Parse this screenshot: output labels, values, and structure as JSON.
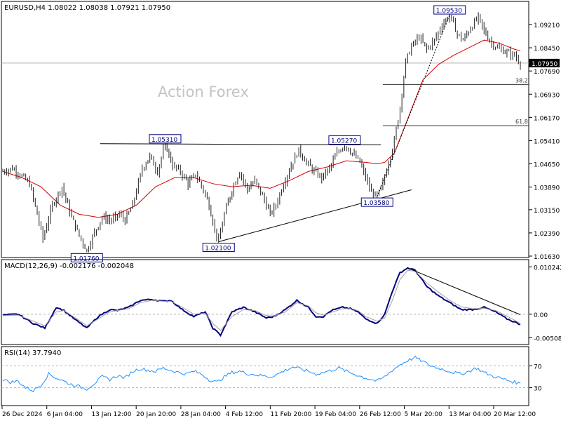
{
  "watermark": "Action Forex",
  "colors": {
    "background": "#ffffff",
    "frame": "#000000",
    "candles": "#1f1f1f",
    "ma": "#d40000",
    "macd_line": "#000080",
    "macd_signal": "#a0a0a0",
    "rsi": "#1e90ff",
    "dotted": "#9a9a9a",
    "trend": "#000000",
    "price_tag_bg": "#000000",
    "price_tag_text": "#ffffff"
  },
  "chart_data": [
    {
      "panel": "price",
      "type": "candlestick",
      "title": "EURUSD,H4  1.08022 1.08038 1.07921 1.07950",
      "ylim": [
        1.0163,
        1.0975
      ],
      "y_ticks": [
        "1.09210",
        "1.08450",
        "1.07690",
        "1.06930",
        "1.06170",
        "1.05410",
        "1.04650",
        "1.03890",
        "1.03150",
        "1.02390",
        "1.01630"
      ],
      "current_price": "1.07950",
      "x_ticks": [
        "26 Dec 2024",
        "6 Jan 04:00",
        "13 Jan 12:00",
        "20 Jan 20:00",
        "28 Jan 04:00",
        "4 Feb 12:00",
        "11 Feb 20:00",
        "19 Feb 04:00",
        "26 Feb 12:00",
        "5 Mar 20:00",
        "13 Mar 04:00",
        "20 Mar 12:00"
      ],
      "close_path": [
        [
          0,
          1.044
        ],
        [
          5,
          1.045
        ],
        [
          10,
          1.0425
        ],
        [
          14,
          1.04
        ],
        [
          18,
          1.03
        ],
        [
          21,
          1.022
        ],
        [
          26,
          1.033
        ],
        [
          31,
          1.039
        ],
        [
          36,
          1.029
        ],
        [
          40,
          1.023
        ],
        [
          44,
          1.018
        ],
        [
          48,
          1.024
        ],
        [
          52,
          1.029
        ],
        [
          57,
          1.028
        ],
        [
          61,
          1.03
        ],
        [
          64,
          1.028
        ],
        [
          68,
          1.033
        ],
        [
          73,
          1.045
        ],
        [
          77,
          1.049
        ],
        [
          81,
          1.044
        ],
        [
          85,
          1.0531
        ],
        [
          89,
          1.046
        ],
        [
          93,
          1.044
        ],
        [
          97,
          1.04
        ],
        [
          101,
          1.043
        ],
        [
          105,
          1.038
        ],
        [
          108,
          1.033
        ],
        [
          111,
          1.025
        ],
        [
          113,
          1.021
        ],
        [
          116,
          1.03
        ],
        [
          120,
          1.038
        ],
        [
          124,
          1.044
        ],
        [
          128,
          1.038
        ],
        [
          132,
          1.041
        ],
        [
          136,
          1.036
        ],
        [
          140,
          1.03
        ],
        [
          143,
          1.033
        ],
        [
          147,
          1.04
        ],
        [
          151,
          1.046
        ],
        [
          155,
          1.051
        ],
        [
          159,
          1.047
        ],
        [
          163,
          1.044
        ],
        [
          167,
          1.042
        ],
        [
          171,
          1.045
        ],
        [
          175,
          1.05
        ],
        [
          179,
          1.0527
        ],
        [
          183,
          1.05
        ],
        [
          187,
          1.047
        ],
        [
          190,
          1.042
        ],
        [
          193,
          1.037
        ],
        [
          196,
          1.0358
        ],
        [
          199,
          1.04
        ],
        [
          202,
          1.047
        ],
        [
          205,
          1.054
        ],
        [
          208,
          1.065
        ],
        [
          211,
          1.08
        ],
        [
          214,
          1.085
        ],
        [
          218,
          1.088
        ],
        [
          222,
          1.084
        ],
        [
          226,
          1.087
        ],
        [
          230,
          1.092
        ],
        [
          234,
          1.0953
        ],
        [
          238,
          1.089
        ],
        [
          241,
          1.087
        ],
        [
          245,
          1.091
        ],
        [
          249,
          1.0945
        ],
        [
          252,
          1.09
        ],
        [
          256,
          1.086
        ],
        [
          260,
          1.084
        ],
        [
          264,
          1.083
        ],
        [
          268,
          1.082
        ],
        [
          271,
          1.0795
        ]
      ],
      "moving_average": [
        [
          0,
          1.044
        ],
        [
          10,
          1.042
        ],
        [
          20,
          1.039
        ],
        [
          30,
          1.033
        ],
        [
          40,
          1.03
        ],
        [
          50,
          1.029
        ],
        [
          60,
          1.03
        ],
        [
          70,
          1.033
        ],
        [
          80,
          1.039
        ],
        [
          90,
          1.042
        ],
        [
          100,
          1.042
        ],
        [
          110,
          1.04
        ],
        [
          120,
          1.039
        ],
        [
          130,
          1.0395
        ],
        [
          140,
          1.0385
        ],
        [
          150,
          1.041
        ],
        [
          160,
          1.044
        ],
        [
          170,
          1.0455
        ],
        [
          180,
          1.0475
        ],
        [
          190,
          1.047
        ],
        [
          196,
          1.0465
        ],
        [
          200,
          1.047
        ],
        [
          205,
          1.05
        ],
        [
          210,
          1.058
        ],
        [
          215,
          1.066
        ],
        [
          220,
          1.074
        ],
        [
          228,
          1.079
        ],
        [
          236,
          1.082
        ],
        [
          244,
          1.0845
        ],
        [
          252,
          1.087
        ],
        [
          260,
          1.086
        ],
        [
          268,
          1.084
        ],
        [
          271,
          1.0835
        ]
      ],
      "annotations": [
        {
          "label": "1.01760",
          "x": 44,
          "y": 1.0176
        },
        {
          "label": "1.05310",
          "x": 85,
          "y": 1.0531
        },
        {
          "label": "1.02100",
          "x": 113,
          "y": 1.021
        },
        {
          "label": "1.05270",
          "x": 179,
          "y": 1.0527
        },
        {
          "label": "1.03580",
          "x": 196,
          "y": 1.0358
        },
        {
          "label": "1.09530",
          "x": 234,
          "y": 1.0953
        }
      ],
      "horizontal_levels": [
        {
          "label": "",
          "y": 1.0795,
          "style": "solid-gray"
        },
        {
          "label": "38.2",
          "y": 1.0725,
          "x_from": 199
        },
        {
          "label": "61.8",
          "y": 1.059,
          "x_from": 199
        }
      ],
      "trend_lines": [
        {
          "from": [
            51,
            1.0531
          ],
          "to": [
            198,
            1.0527
          ],
          "style": "solid"
        },
        {
          "from": [
            113,
            1.021
          ],
          "to": [
            214,
            1.038
          ],
          "style": "solid"
        },
        {
          "from": [
            196,
            1.0358
          ],
          "to": [
            234,
            1.0953
          ],
          "style": "dashed"
        }
      ]
    },
    {
      "panel": "macd",
      "type": "line",
      "title": "MACD(12,26,9) -0.002176 -0.002048",
      "ylim": [
        -0.0061,
        0.0106
      ],
      "y_ticks": [
        "0.010242",
        "0.00",
        "-0.005081"
      ],
      "series": [
        {
          "role": "macd",
          "values": [
            [
              0,
              -0.0002
            ],
            [
              8,
              0.0
            ],
            [
              16,
              -0.002
            ],
            [
              22,
              -0.003
            ],
            [
              28,
              0.0015
            ],
            [
              32,
              0.0008
            ],
            [
              38,
              -0.0012
            ],
            [
              44,
              -0.003
            ],
            [
              50,
              -0.0005
            ],
            [
              56,
              0.001
            ],
            [
              60,
              0.0008
            ],
            [
              66,
              0.0015
            ],
            [
              72,
              0.003
            ],
            [
              78,
              0.0032
            ],
            [
              84,
              0.0028
            ],
            [
              88,
              0.003
            ],
            [
              94,
              0.001
            ],
            [
              100,
              -0.0005
            ],
            [
              106,
              0.0005
            ],
            [
              110,
              -0.003
            ],
            [
              114,
              -0.0045
            ],
            [
              120,
              0.0005
            ],
            [
              126,
              0.0015
            ],
            [
              132,
              0.0005
            ],
            [
              138,
              -0.0008
            ],
            [
              142,
              -0.0005
            ],
            [
              148,
              0.001
            ],
            [
              154,
              0.003
            ],
            [
              160,
              0.0015
            ],
            [
              164,
              -0.0005
            ],
            [
              168,
              -0.0005
            ],
            [
              172,
              0.0008
            ],
            [
              178,
              0.0015
            ],
            [
              182,
              0.0012
            ],
            [
              186,
              0.0005
            ],
            [
              190,
              -0.001
            ],
            [
              196,
              -0.002
            ],
            [
              200,
              0.0
            ],
            [
              204,
              0.005
            ],
            [
              208,
              0.009
            ],
            [
              212,
              0.01
            ],
            [
              216,
              0.0095
            ],
            [
              222,
              0.006
            ],
            [
              228,
              0.004
            ],
            [
              234,
              0.0025
            ],
            [
              240,
              0.001
            ],
            [
              246,
              0.001
            ],
            [
              252,
              0.0015
            ],
            [
              258,
              0.0005
            ],
            [
              264,
              -0.001
            ],
            [
              271,
              -0.0022
            ]
          ]
        },
        {
          "role": "signal",
          "values": [
            [
              0,
              -0.0003
            ],
            [
              8,
              -0.0002
            ],
            [
              16,
              -0.0015
            ],
            [
              22,
              -0.0025
            ],
            [
              28,
              0.0005
            ],
            [
              32,
              0.0008
            ],
            [
              38,
              -0.0008
            ],
            [
              44,
              -0.0025
            ],
            [
              50,
              -0.001
            ],
            [
              56,
              0.0005
            ],
            [
              60,
              0.0008
            ],
            [
              66,
              0.0012
            ],
            [
              72,
              0.0025
            ],
            [
              78,
              0.003
            ],
            [
              84,
              0.0028
            ],
            [
              88,
              0.0028
            ],
            [
              94,
              0.0015
            ],
            [
              100,
              0.0
            ],
            [
              106,
              0.0002
            ],
            [
              110,
              -0.002
            ],
            [
              114,
              -0.0035
            ],
            [
              120,
              -0.0005
            ],
            [
              126,
              0.001
            ],
            [
              132,
              0.0008
            ],
            [
              138,
              -0.0003
            ],
            [
              142,
              -0.0004
            ],
            [
              148,
              0.0005
            ],
            [
              154,
              0.0025
            ],
            [
              160,
              0.0018
            ],
            [
              164,
              0.0003
            ],
            [
              168,
              -0.0002
            ],
            [
              172,
              0.0004
            ],
            [
              178,
              0.0012
            ],
            [
              182,
              0.0012
            ],
            [
              186,
              0.0008
            ],
            [
              190,
              -0.0005
            ],
            [
              196,
              -0.0015
            ],
            [
              200,
              -0.0008
            ],
            [
              204,
              0.003
            ],
            [
              208,
              0.0075
            ],
            [
              212,
              0.0095
            ],
            [
              216,
              0.0093
            ],
            [
              222,
              0.0068
            ],
            [
              228,
              0.0048
            ],
            [
              234,
              0.003
            ],
            [
              240,
              0.0016
            ],
            [
              246,
              0.0012
            ],
            [
              252,
              0.0013
            ],
            [
              258,
              0.0008
            ],
            [
              264,
              -0.0004
            ],
            [
              271,
              -0.002
            ]
          ]
        }
      ],
      "trend_line": {
        "from": [
          212,
          0.01
        ],
        "to": [
          271,
          -0.0001
        ]
      }
    },
    {
      "panel": "rsi",
      "type": "line",
      "title": "RSI(14) 37.7940",
      "ylim": [
        0,
        100
      ],
      "y_ticks": [
        "70",
        "30"
      ],
      "levels": [
        70,
        30
      ],
      "values": [
        [
          0,
          45
        ],
        [
          4,
          40
        ],
        [
          8,
          42
        ],
        [
          12,
          30
        ],
        [
          16,
          25
        ],
        [
          20,
          35
        ],
        [
          24,
          55
        ],
        [
          28,
          48
        ],
        [
          32,
          42
        ],
        [
          36,
          36
        ],
        [
          40,
          32
        ],
        [
          44,
          28
        ],
        [
          48,
          38
        ],
        [
          52,
          50
        ],
        [
          56,
          45
        ],
        [
          60,
          52
        ],
        [
          64,
          48
        ],
        [
          68,
          60
        ],
        [
          72,
          65
        ],
        [
          76,
          62
        ],
        [
          80,
          60
        ],
        [
          84,
          66
        ],
        [
          88,
          62
        ],
        [
          92,
          58
        ],
        [
          96,
          55
        ],
        [
          100,
          60
        ],
        [
          104,
          55
        ],
        [
          108,
          45
        ],
        [
          112,
          40
        ],
        [
          116,
          50
        ],
        [
          120,
          58
        ],
        [
          124,
          60
        ],
        [
          128,
          56
        ],
        [
          132,
          54
        ],
        [
          136,
          52
        ],
        [
          140,
          50
        ],
        [
          144,
          55
        ],
        [
          148,
          62
        ],
        [
          152,
          68
        ],
        [
          156,
          64
        ],
        [
          160,
          60
        ],
        [
          164,
          55
        ],
        [
          168,
          58
        ],
        [
          172,
          62
        ],
        [
          176,
          66
        ],
        [
          180,
          60
        ],
        [
          184,
          55
        ],
        [
          188,
          50
        ],
        [
          192,
          46
        ],
        [
          196,
          42
        ],
        [
          200,
          50
        ],
        [
          204,
          62
        ],
        [
          208,
          72
        ],
        [
          212,
          80
        ],
        [
          216,
          85
        ],
        [
          220,
          78
        ],
        [
          224,
          70
        ],
        [
          228,
          66
        ],
        [
          232,
          62
        ],
        [
          236,
          58
        ],
        [
          240,
          55
        ],
        [
          244,
          60
        ],
        [
          248,
          66
        ],
        [
          252,
          58
        ],
        [
          256,
          52
        ],
        [
          260,
          48
        ],
        [
          264,
          44
        ],
        [
          268,
          40
        ],
        [
          271,
          38
        ]
      ]
    }
  ]
}
